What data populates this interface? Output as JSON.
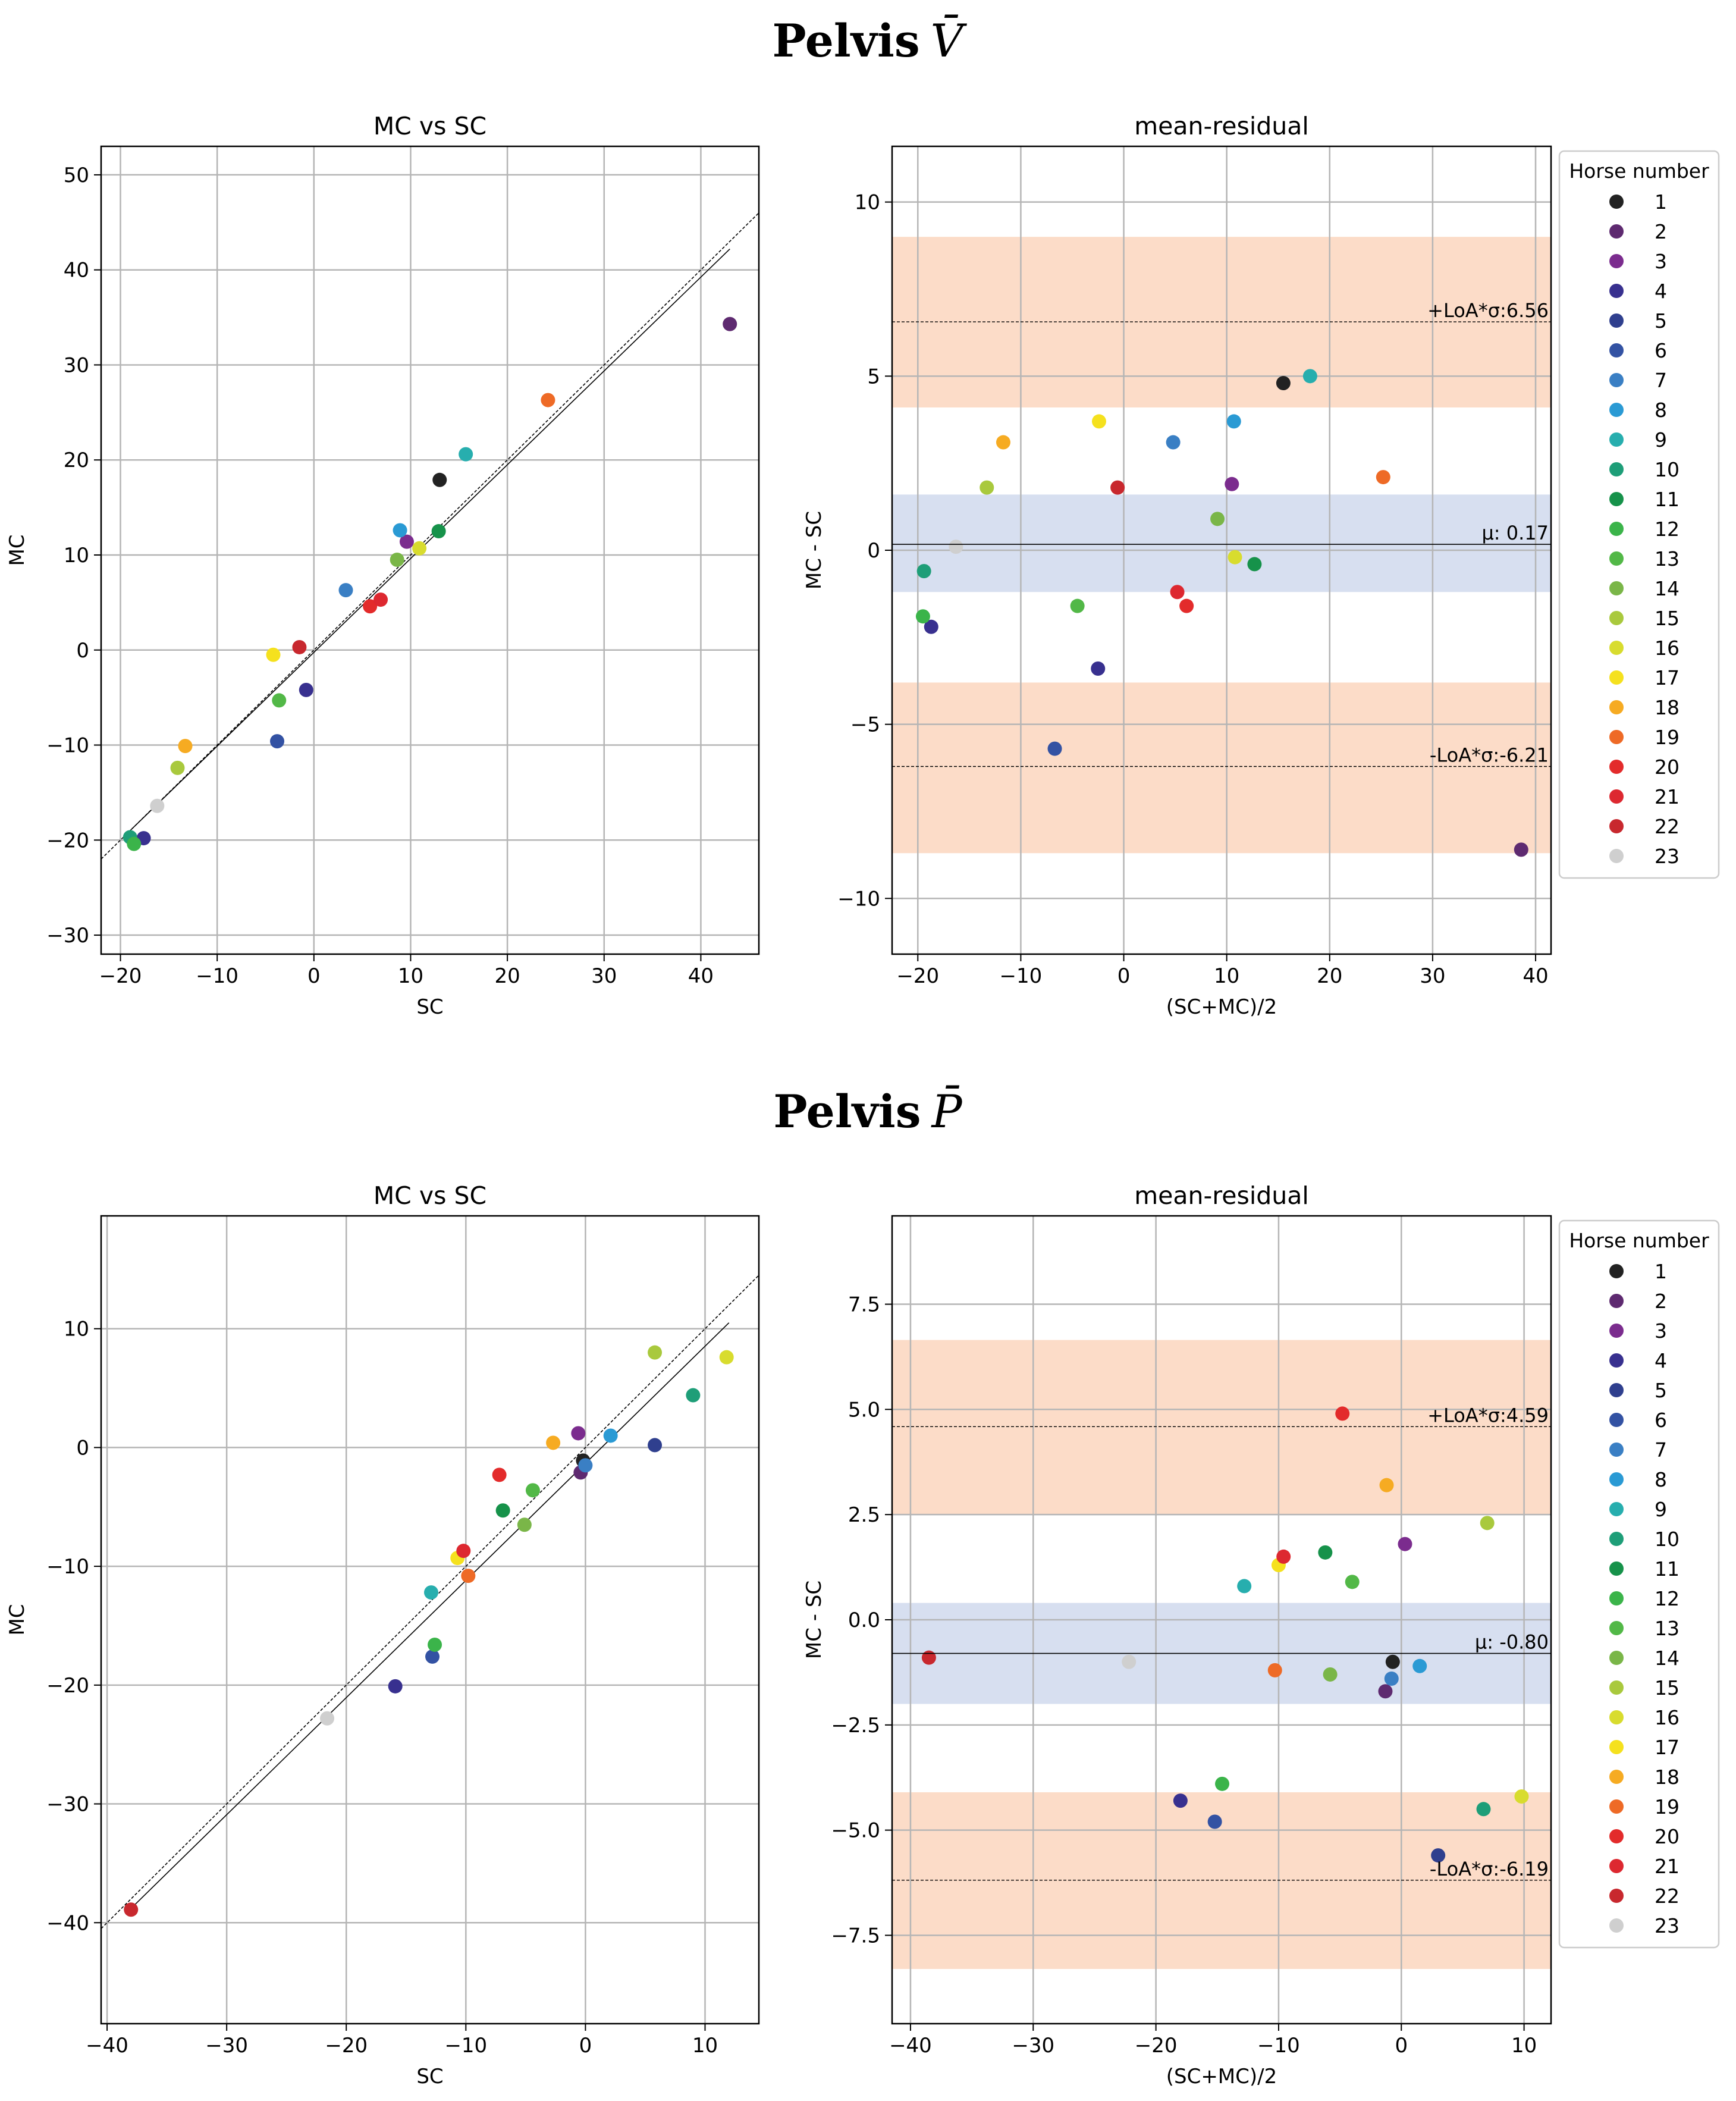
{
  "sections": [
    {
      "title_word": "Pelvis",
      "title_symbol": "V̄"
    },
    {
      "title_word": "Pelvis",
      "title_symbol": "P̄"
    }
  ],
  "legend": {
    "title": "Horse number",
    "labels": [
      "1",
      "2",
      "3",
      "4",
      "5",
      "6",
      "7",
      "8",
      "9",
      "10",
      "11",
      "12",
      "13",
      "14",
      "15",
      "16",
      "17",
      "18",
      "19",
      "20",
      "21",
      "22",
      "23"
    ],
    "colors": [
      "#222222",
      "#5e2a70",
      "#7b2c8e",
      "#38308f",
      "#2f3f8e",
      "#3352a3",
      "#3a7fc4",
      "#2a9ad4",
      "#27aeae",
      "#1e9e78",
      "#16924a",
      "#3bb44a",
      "#52b847",
      "#7ab648",
      "#a9c93d",
      "#d8dc2e",
      "#f5e11e",
      "#f6ab22",
      "#ee6a26",
      "#e32b2b",
      "#dd2830",
      "#c8282e",
      "#cfcfcf"
    ]
  },
  "chart_data": [
    {
      "type": "scatter",
      "title": "MC vs SC",
      "xlabel": "SC",
      "ylabel": "MC",
      "xlim": [
        -22,
        46
      ],
      "ylim": [
        -32,
        53
      ],
      "xticks": [
        -20,
        -10,
        0,
        10,
        20,
        30,
        40
      ],
      "yticks": [
        -30,
        -20,
        -10,
        0,
        10,
        20,
        30,
        40,
        50
      ],
      "xticklabels": [
        "−20",
        "−10",
        "0",
        "10",
        "20",
        "30",
        "40"
      ],
      "yticklabels": [
        "−30",
        "−20",
        "−10",
        "0",
        "10",
        "20",
        "30",
        "40",
        "50"
      ],
      "lines": [
        {
          "name": "identity",
          "style": "dashed",
          "x": [
            -22,
            46
          ],
          "y": [
            -22,
            46
          ]
        },
        {
          "name": "regression",
          "style": "solid",
          "x": [
            -19,
            43
          ],
          "y": [
            -19,
            42.2
          ]
        }
      ],
      "points": [
        {
          "horse": 1,
          "x": 13.0,
          "y": 17.9
        },
        {
          "horse": 2,
          "x": 43.0,
          "y": 34.3
        },
        {
          "horse": 3,
          "x": 9.6,
          "y": 11.4
        },
        {
          "horse": 4,
          "x": -0.8,
          "y": -4.2
        },
        {
          "horse": 4,
          "x": -17.6,
          "y": -19.8
        },
        {
          "horse": 6,
          "x": -3.8,
          "y": -9.6
        },
        {
          "horse": 7,
          "x": 3.3,
          "y": 6.3
        },
        {
          "horse": 8,
          "x": 8.9,
          "y": 12.6
        },
        {
          "horse": 9,
          "x": 15.7,
          "y": 20.6
        },
        {
          "horse": 10,
          "x": -19.0,
          "y": -19.7
        },
        {
          "horse": 11,
          "x": 12.9,
          "y": 12.5
        },
        {
          "horse": 12,
          "x": -18.6,
          "y": -20.4
        },
        {
          "horse": 13,
          "x": -3.6,
          "y": -5.3
        },
        {
          "horse": 14,
          "x": 8.6,
          "y": 9.5
        },
        {
          "horse": 15,
          "x": -14.1,
          "y": -12.4
        },
        {
          "horse": 16,
          "x": 10.9,
          "y": 10.7
        },
        {
          "horse": 17,
          "x": -4.2,
          "y": -0.5
        },
        {
          "horse": 18,
          "x": -13.3,
          "y": -10.1
        },
        {
          "horse": 19,
          "x": 24.2,
          "y": 26.3
        },
        {
          "horse": 20,
          "x": 5.8,
          "y": 4.6
        },
        {
          "horse": 21,
          "x": 6.9,
          "y": 5.3
        },
        {
          "horse": 22,
          "x": -1.5,
          "y": 0.3
        },
        {
          "horse": 23,
          "x": -16.2,
          "y": -16.4
        }
      ]
    },
    {
      "type": "scatter",
      "title": "mean-residual",
      "xlabel": "(SC+MC)/2",
      "ylabel": "MC - SC",
      "xlim": [
        -22.5,
        41.5
      ],
      "ylim": [
        -11.6,
        11.6
      ],
      "xticks": [
        -20,
        -10,
        0,
        10,
        20,
        30,
        40
      ],
      "yticks": [
        -10,
        -5,
        0,
        5,
        10
      ],
      "xticklabels": [
        "−20",
        "−10",
        "0",
        "10",
        "20",
        "30",
        "40"
      ],
      "yticklabels": [
        "−10",
        "−5",
        "0",
        "5",
        "10"
      ],
      "mean": 0.17,
      "upper_loa": 6.56,
      "lower_loa": -6.21,
      "mean_band": [
        -1.2,
        1.6
      ],
      "upper_band": [
        4.1,
        9.0
      ],
      "lower_band": [
        -8.7,
        -3.8
      ],
      "mean_label": "μ: 0.17",
      "upper_label": "+LoA*σ:6.56",
      "lower_label": "-LoA*σ:-6.21",
      "points": [
        {
          "horse": 1,
          "x": 15.5,
          "y": 4.8
        },
        {
          "horse": 2,
          "x": 38.6,
          "y": -8.6
        },
        {
          "horse": 3,
          "x": 10.5,
          "y": 1.9
        },
        {
          "horse": 4,
          "x": -2.5,
          "y": -3.4
        },
        {
          "horse": 4,
          "x": -18.7,
          "y": -2.2
        },
        {
          "horse": 6,
          "x": -6.7,
          "y": -5.7
        },
        {
          "horse": 7,
          "x": 4.8,
          "y": 3.1
        },
        {
          "horse": 8,
          "x": 10.7,
          "y": 3.7
        },
        {
          "horse": 9,
          "x": 18.1,
          "y": 5.0
        },
        {
          "horse": 10,
          "x": -19.4,
          "y": -0.6
        },
        {
          "horse": 11,
          "x": 12.7,
          "y": -0.4
        },
        {
          "horse": 12,
          "x": -19.5,
          "y": -1.9
        },
        {
          "horse": 13,
          "x": -4.5,
          "y": -1.6
        },
        {
          "horse": 14,
          "x": 9.1,
          "y": 0.9
        },
        {
          "horse": 15,
          "x": -13.3,
          "y": 1.8
        },
        {
          "horse": 16,
          "x": 10.8,
          "y": -0.2
        },
        {
          "horse": 17,
          "x": -2.4,
          "y": 3.7
        },
        {
          "horse": 18,
          "x": -11.7,
          "y": 3.1
        },
        {
          "horse": 19,
          "x": 25.2,
          "y": 2.1
        },
        {
          "horse": 20,
          "x": 6.1,
          "y": -1.6
        },
        {
          "horse": 21,
          "x": 5.2,
          "y": -1.2
        },
        {
          "horse": 22,
          "x": -0.6,
          "y": 1.8
        },
        {
          "horse": 23,
          "x": -16.3,
          "y": 0.1
        }
      ]
    },
    {
      "type": "scatter",
      "title": "MC vs SC",
      "xlabel": "SC",
      "ylabel": "MC",
      "xlim": [
        -40.5,
        14.5
      ],
      "ylim": [
        -48.5,
        19.5
      ],
      "xticks": [
        -40,
        -30,
        -20,
        -10,
        0,
        10
      ],
      "yticks": [
        -40,
        -30,
        -20,
        -10,
        0,
        10
      ],
      "xticklabels": [
        "−40",
        "−30",
        "−20",
        "−10",
        "0",
        "10"
      ],
      "yticklabels": [
        "−40",
        "−30",
        "−20",
        "−10",
        "0",
        "10"
      ],
      "lines": [
        {
          "name": "identity",
          "style": "dashed",
          "x": [
            -40.5,
            14.5
          ],
          "y": [
            -40.5,
            14.5
          ]
        },
        {
          "name": "regression",
          "style": "solid",
          "x": [
            -38,
            12
          ],
          "y": [
            -38.8,
            10.5
          ]
        }
      ],
      "points": [
        {
          "horse": 1,
          "x": -0.2,
          "y": -1.1
        },
        {
          "horse": 2,
          "x": -0.4,
          "y": -2.1
        },
        {
          "horse": 3,
          "x": -0.6,
          "y": 1.2
        },
        {
          "horse": 4,
          "x": -15.9,
          "y": -20.1
        },
        {
          "horse": 5,
          "x": 5.8,
          "y": 0.2
        },
        {
          "horse": 6,
          "x": -12.8,
          "y": -17.6
        },
        {
          "horse": 7,
          "x": 0.0,
          "y": -1.5
        },
        {
          "horse": 8,
          "x": 2.1,
          "y": 1.0
        },
        {
          "horse": 9,
          "x": -12.9,
          "y": -12.2
        },
        {
          "horse": 10,
          "x": 9.0,
          "y": 4.4
        },
        {
          "horse": 11,
          "x": -6.9,
          "y": -5.3
        },
        {
          "horse": 12,
          "x": -12.6,
          "y": -16.6
        },
        {
          "horse": 13,
          "x": -4.4,
          "y": -3.6
        },
        {
          "horse": 14,
          "x": -5.1,
          "y": -6.5
        },
        {
          "horse": 15,
          "x": 5.8,
          "y": 8.0
        },
        {
          "horse": 16,
          "x": 11.8,
          "y": 7.6
        },
        {
          "horse": 17,
          "x": -10.7,
          "y": -9.3
        },
        {
          "horse": 18,
          "x": -2.7,
          "y": 0.4
        },
        {
          "horse": 19,
          "x": -9.8,
          "y": -10.8
        },
        {
          "horse": 20,
          "x": -7.2,
          "y": -2.3
        },
        {
          "horse": 21,
          "x": -10.2,
          "y": -8.7
        },
        {
          "horse": 22,
          "x": -38.0,
          "y": -38.9
        },
        {
          "horse": 23,
          "x": -21.6,
          "y": -22.8
        }
      ]
    },
    {
      "type": "scatter",
      "title": "mean-residual",
      "xlabel": "(SC+MC)/2",
      "ylabel": "MC - SC",
      "xlim": [
        -41.5,
        12.2
      ],
      "ylim": [
        -9.6,
        9.6
      ],
      "xticks": [
        -40,
        -30,
        -20,
        -10,
        0,
        10
      ],
      "yticks": [
        -7.5,
        -5.0,
        -2.5,
        0.0,
        2.5,
        5.0,
        7.5
      ],
      "xticklabels": [
        "−40",
        "−30",
        "−20",
        "−10",
        "0",
        "10"
      ],
      "yticklabels": [
        "−7.5",
        "−5.0",
        "−2.5",
        "0.0",
        "2.5",
        "5.0",
        "7.5"
      ],
      "mean": -0.8,
      "upper_loa": 4.59,
      "lower_loa": -6.19,
      "mean_band": [
        -2.0,
        0.4
      ],
      "upper_band": [
        2.5,
        6.65
      ],
      "lower_band": [
        -8.3,
        -4.1
      ],
      "mean_label": "μ: -0.80",
      "upper_label": "+LoA*σ:4.59",
      "lower_label": "-LoA*σ:-6.19",
      "points": [
        {
          "horse": 1,
          "x": -0.7,
          "y": -1.0
        },
        {
          "horse": 2,
          "x": -1.3,
          "y": -1.7
        },
        {
          "horse": 3,
          "x": 0.3,
          "y": 1.8
        },
        {
          "horse": 4,
          "x": -18.0,
          "y": -4.3
        },
        {
          "horse": 5,
          "x": 3.0,
          "y": -5.6
        },
        {
          "horse": 6,
          "x": -15.2,
          "y": -4.8
        },
        {
          "horse": 7,
          "x": -0.8,
          "y": -1.4
        },
        {
          "horse": 8,
          "x": 1.5,
          "y": -1.1
        },
        {
          "horse": 9,
          "x": -12.8,
          "y": 0.8
        },
        {
          "horse": 10,
          "x": 6.7,
          "y": -4.5
        },
        {
          "horse": 11,
          "x": -6.2,
          "y": 1.6
        },
        {
          "horse": 12,
          "x": -14.6,
          "y": -3.9
        },
        {
          "horse": 13,
          "x": -4.0,
          "y": 0.9
        },
        {
          "horse": 14,
          "x": -5.8,
          "y": -1.3
        },
        {
          "horse": 15,
          "x": 7.0,
          "y": 2.3
        },
        {
          "horse": 16,
          "x": 9.8,
          "y": -4.2
        },
        {
          "horse": 17,
          "x": -10.0,
          "y": 1.3
        },
        {
          "horse": 18,
          "x": -1.2,
          "y": 3.2
        },
        {
          "horse": 19,
          "x": -10.3,
          "y": -1.2
        },
        {
          "horse": 20,
          "x": -4.8,
          "y": 4.9
        },
        {
          "horse": 21,
          "x": -9.6,
          "y": 1.5
        },
        {
          "horse": 22,
          "x": -38.5,
          "y": -0.9
        },
        {
          "horse": 23,
          "x": -22.2,
          "y": -1.0
        }
      ]
    }
  ]
}
